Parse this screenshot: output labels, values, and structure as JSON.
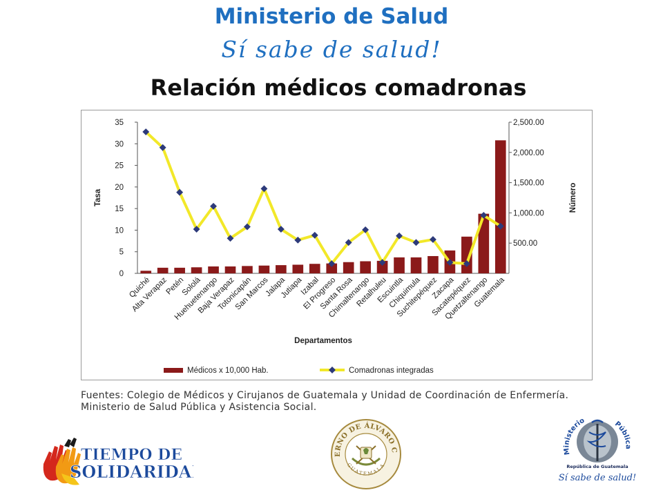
{
  "header": {
    "ministry": "Ministerio de Salud",
    "slogan": "Sí sabe de salud!",
    "slide_title": "Relación médicos comadronas"
  },
  "chart_data": {
    "type": "bar+line",
    "title": "",
    "xlabel": "Departamentos",
    "ylabel_left": "Tasa",
    "ylabel_right": "Número",
    "ylim_left": [
      0,
      35
    ],
    "ylim_right": [
      0,
      2500
    ],
    "yticks_left": [
      "0",
      "5",
      "10",
      "15",
      "20",
      "25",
      "30",
      "35"
    ],
    "yticks_right": [
      "500.00",
      "1,000.00",
      "1,500.00",
      "2,000.00",
      "2,500.00"
    ],
    "categories": [
      "Quiché",
      "Alta Verapaz",
      "Petén",
      "Sololá",
      "Huehuetenango",
      "Baja Verapaz",
      "Totonicapán",
      "San Marcos",
      "Jalapa",
      "Jutiapa",
      "Izabal",
      "El Progreso",
      "Santa Rosa",
      "Chimaltenango",
      "Retalhuleu",
      "Escuintla",
      "Chiquimula",
      "Suchitepéquez",
      "Zacapa",
      "Sacatepéquez",
      "Quetzaltenango",
      "Guatemala"
    ],
    "series": [
      {
        "name": "Médicos x 10,000 Hab.",
        "type": "bar",
        "axis": "left",
        "color": "#8b1a1a",
        "values": [
          0.6,
          1.3,
          1.3,
          1.4,
          1.6,
          1.6,
          1.7,
          1.8,
          1.9,
          2.0,
          2.2,
          2.3,
          2.6,
          2.8,
          2.9,
          3.7,
          3.7,
          4.0,
          5.3,
          8.5,
          13.8,
          30.8
        ]
      },
      {
        "name": "Comadronas integradas",
        "type": "line",
        "axis": "right",
        "color": "#f2e829",
        "marker_color": "#2d3a7a",
        "values": [
          2340,
          2080,
          1340,
          730,
          1110,
          580,
          770,
          1400,
          730,
          550,
          630,
          160,
          510,
          720,
          180,
          620,
          510,
          560,
          180,
          160,
          960,
          780
        ]
      }
    ],
    "legend_position": "bottom",
    "grid": false
  },
  "sources": {
    "text": "Fuentes: Colegio de Médicos y Cirujanos de Guatemala y Unidad de Coordinación de Enfermería. Ministerio de Salud Pública y Asistencia Social."
  },
  "logos": {
    "left_line1": "TIEMPO DE",
    "left_line2": "SOLIDARIDAD",
    "center_ring_top": "GOBIERNO DE ÁLVARO COLOM",
    "center_ring_bottom": "GUATEMALA",
    "right_ring_left": "Ministerio",
    "right_ring_right": "Pública",
    "right_caption": "República de Guatemala",
    "right_slogan": "Sí sabe de salud!"
  }
}
